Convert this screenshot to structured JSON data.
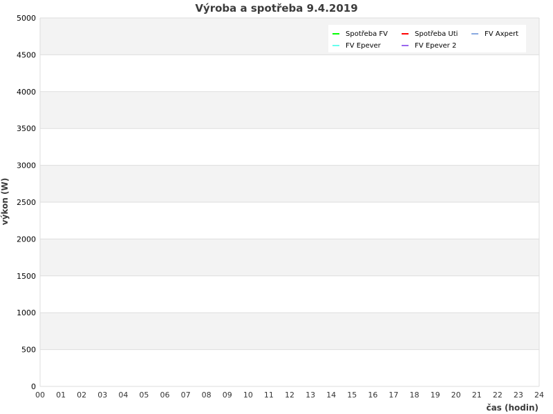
{
  "chart_data": {
    "type": "line",
    "title": "Výroba a spotřeba 9.4.2019",
    "xlabel": "čas (hodin)",
    "ylabel": "výkon (W)",
    "xlim": [
      0,
      24
    ],
    "ylim": [
      0,
      5000
    ],
    "x_ticks": [
      "00",
      "01",
      "02",
      "03",
      "04",
      "05",
      "06",
      "07",
      "08",
      "09",
      "10",
      "11",
      "12",
      "13",
      "14",
      "15",
      "16",
      "17",
      "18",
      "19",
      "20",
      "21",
      "22",
      "23",
      "24"
    ],
    "y_ticks": [
      0,
      500,
      1000,
      1500,
      2000,
      2500,
      3000,
      3500,
      4000,
      4500,
      5000
    ],
    "grid": true,
    "legend_position": "top-right",
    "series": [
      {
        "name": "Spotřeba FV",
        "color": "#00ff00",
        "values": []
      },
      {
        "name": "Spotřeba Uti",
        "color": "#ff0000",
        "values": []
      },
      {
        "name": "FV Axpert",
        "color": "#88a8e0",
        "values": []
      },
      {
        "name": "FV Epever",
        "color": "#66ffee",
        "values": []
      },
      {
        "name": "FV Epever 2",
        "color": "#9966ee",
        "values": []
      }
    ]
  }
}
